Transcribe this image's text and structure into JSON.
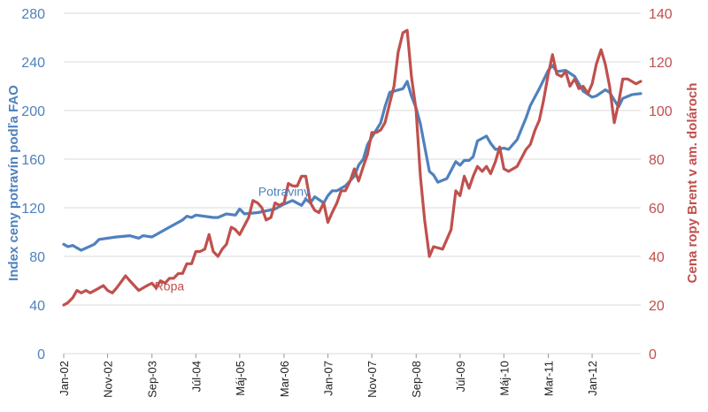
{
  "chart_data": {
    "type": "line",
    "y_left": {
      "label": "Index ceny potravín podľa FAO",
      "ylim": [
        0,
        280
      ],
      "ticks": [
        0,
        40,
        80,
        120,
        160,
        200,
        240,
        280
      ]
    },
    "y_right": {
      "label": "Cena ropy Brent v am. dolároch",
      "ylim": [
        0,
        140
      ],
      "ticks": [
        0,
        20,
        40,
        60,
        80,
        100,
        120,
        140
      ]
    },
    "x_range": [
      2002.0,
      2012.92
    ],
    "x_ticks": [
      {
        "t": 2002.0,
        "label": "Jan-02"
      },
      {
        "t": 2002.83,
        "label": "Nov-02"
      },
      {
        "t": 2003.67,
        "label": "Sep-03"
      },
      {
        "t": 2004.5,
        "label": "Júl-04"
      },
      {
        "t": 2005.33,
        "label": "Máj-05"
      },
      {
        "t": 2006.17,
        "label": "Mar-06"
      },
      {
        "t": 2007.0,
        "label": "Jan-07"
      },
      {
        "t": 2007.83,
        "label": "Nov-07"
      },
      {
        "t": 2008.67,
        "label": "Sep-08"
      },
      {
        "t": 2009.5,
        "label": "Júl-09"
      },
      {
        "t": 2010.33,
        "label": "Máj-10"
      },
      {
        "t": 2011.17,
        "label": "Mar-11"
      },
      {
        "t": 2012.0,
        "label": "Jan-12"
      }
    ],
    "grid": true,
    "series": [
      {
        "name": "Potraviny",
        "axis": "left",
        "color": "#4f81bd",
        "points": [
          [
            2002.0,
            90
          ],
          [
            2002.08,
            88
          ],
          [
            2002.17,
            89
          ],
          [
            2002.33,
            85
          ],
          [
            2002.58,
            90
          ],
          [
            2002.67,
            94
          ],
          [
            2003.0,
            96
          ],
          [
            2003.25,
            97
          ],
          [
            2003.42,
            95
          ],
          [
            2003.5,
            97
          ],
          [
            2003.67,
            96
          ],
          [
            2004.0,
            104
          ],
          [
            2004.25,
            110
          ],
          [
            2004.33,
            113
          ],
          [
            2004.42,
            112
          ],
          [
            2004.5,
            114
          ],
          [
            2004.83,
            112
          ],
          [
            2004.92,
            112
          ],
          [
            2005.08,
            115
          ],
          [
            2005.25,
            114
          ],
          [
            2005.33,
            119
          ],
          [
            2005.42,
            115
          ],
          [
            2005.67,
            116
          ],
          [
            2006.0,
            119
          ],
          [
            2006.17,
            123
          ],
          [
            2006.33,
            126
          ],
          [
            2006.5,
            122
          ],
          [
            2006.58,
            127
          ],
          [
            2006.67,
            124
          ],
          [
            2006.75,
            129
          ],
          [
            2006.92,
            124
          ],
          [
            2007.0,
            130
          ],
          [
            2007.08,
            134
          ],
          [
            2007.17,
            134
          ],
          [
            2007.33,
            138
          ],
          [
            2007.5,
            146
          ],
          [
            2007.58,
            155
          ],
          [
            2007.67,
            160
          ],
          [
            2007.75,
            172
          ],
          [
            2007.83,
            178
          ],
          [
            2008.0,
            190
          ],
          [
            2008.08,
            203
          ],
          [
            2008.17,
            215
          ],
          [
            2008.42,
            218
          ],
          [
            2008.5,
            224
          ],
          [
            2008.58,
            212
          ],
          [
            2008.67,
            202
          ],
          [
            2008.75,
            189
          ],
          [
            2008.92,
            150
          ],
          [
            2009.0,
            147
          ],
          [
            2009.08,
            141
          ],
          [
            2009.25,
            144
          ],
          [
            2009.42,
            158
          ],
          [
            2009.5,
            155
          ],
          [
            2009.58,
            159
          ],
          [
            2009.67,
            159
          ],
          [
            2009.75,
            162
          ],
          [
            2009.83,
            175
          ],
          [
            2010.0,
            179
          ],
          [
            2010.08,
            173
          ],
          [
            2010.17,
            168
          ],
          [
            2010.33,
            169
          ],
          [
            2010.42,
            168
          ],
          [
            2010.58,
            176
          ],
          [
            2010.75,
            194
          ],
          [
            2010.83,
            204
          ],
          [
            2011.0,
            218
          ],
          [
            2011.17,
            233
          ],
          [
            2011.25,
            237
          ],
          [
            2011.33,
            232
          ],
          [
            2011.5,
            233
          ],
          [
            2011.67,
            228
          ],
          [
            2011.83,
            216
          ],
          [
            2012.0,
            211
          ],
          [
            2012.08,
            212
          ],
          [
            2012.25,
            217
          ],
          [
            2012.33,
            215
          ],
          [
            2012.5,
            203
          ],
          [
            2012.58,
            210
          ],
          [
            2012.75,
            213
          ],
          [
            2012.92,
            214
          ]
        ]
      },
      {
        "name": "Ropa",
        "axis": "right",
        "color": "#c0504d",
        "points": [
          [
            2002.0,
            20
          ],
          [
            2002.08,
            21
          ],
          [
            2002.17,
            23
          ],
          [
            2002.25,
            26
          ],
          [
            2002.33,
            25
          ],
          [
            2002.42,
            26
          ],
          [
            2002.5,
            25
          ],
          [
            2002.67,
            27
          ],
          [
            2002.75,
            28
          ],
          [
            2002.83,
            26
          ],
          [
            2002.92,
            25
          ],
          [
            2003.0,
            27
          ],
          [
            2003.17,
            32
          ],
          [
            2003.25,
            30
          ],
          [
            2003.42,
            26
          ],
          [
            2003.58,
            28
          ],
          [
            2003.67,
            29
          ],
          [
            2003.75,
            27
          ],
          [
            2003.83,
            30
          ],
          [
            2003.92,
            29
          ],
          [
            2004.0,
            31
          ],
          [
            2004.08,
            31
          ],
          [
            2004.17,
            33
          ],
          [
            2004.25,
            33
          ],
          [
            2004.33,
            37
          ],
          [
            2004.42,
            37
          ],
          [
            2004.5,
            42
          ],
          [
            2004.58,
            42
          ],
          [
            2004.67,
            43
          ],
          [
            2004.75,
            49
          ],
          [
            2004.83,
            42
          ],
          [
            2004.92,
            40
          ],
          [
            2005.0,
            43
          ],
          [
            2005.08,
            45
          ],
          [
            2005.17,
            52
          ],
          [
            2005.25,
            51
          ],
          [
            2005.33,
            49
          ],
          [
            2005.5,
            56
          ],
          [
            2005.58,
            63
          ],
          [
            2005.67,
            62
          ],
          [
            2005.75,
            60
          ],
          [
            2005.83,
            55
          ],
          [
            2005.92,
            56
          ],
          [
            2006.0,
            62
          ],
          [
            2006.08,
            61
          ],
          [
            2006.17,
            62
          ],
          [
            2006.25,
            70
          ],
          [
            2006.33,
            69
          ],
          [
            2006.42,
            69
          ],
          [
            2006.5,
            73
          ],
          [
            2006.58,
            73
          ],
          [
            2006.67,
            62
          ],
          [
            2006.75,
            59
          ],
          [
            2006.83,
            58
          ],
          [
            2006.92,
            62
          ],
          [
            2007.0,
            54
          ],
          [
            2007.08,
            58
          ],
          [
            2007.17,
            62
          ],
          [
            2007.25,
            67
          ],
          [
            2007.33,
            67
          ],
          [
            2007.42,
            71
          ],
          [
            2007.5,
            76
          ],
          [
            2007.58,
            71
          ],
          [
            2007.67,
            77
          ],
          [
            2007.75,
            82
          ],
          [
            2007.83,
            91
          ],
          [
            2007.92,
            91
          ],
          [
            2008.0,
            92
          ],
          [
            2008.08,
            95
          ],
          [
            2008.17,
            103
          ],
          [
            2008.25,
            110
          ],
          [
            2008.33,
            124
          ],
          [
            2008.42,
            132
          ],
          [
            2008.5,
            133
          ],
          [
            2008.58,
            114
          ],
          [
            2008.67,
            100
          ],
          [
            2008.75,
            73
          ],
          [
            2008.83,
            55
          ],
          [
            2008.92,
            40
          ],
          [
            2009.0,
            44
          ],
          [
            2009.17,
            43
          ],
          [
            2009.25,
            47
          ],
          [
            2009.33,
            51
          ],
          [
            2009.42,
            67
          ],
          [
            2009.5,
            65
          ],
          [
            2009.58,
            73
          ],
          [
            2009.67,
            68
          ],
          [
            2009.75,
            73
          ],
          [
            2009.83,
            77
          ],
          [
            2009.92,
            75
          ],
          [
            2010.0,
            77
          ],
          [
            2010.08,
            74
          ],
          [
            2010.17,
            79
          ],
          [
            2010.25,
            85
          ],
          [
            2010.33,
            76
          ],
          [
            2010.42,
            75
          ],
          [
            2010.58,
            77
          ],
          [
            2010.75,
            84
          ],
          [
            2010.83,
            86
          ],
          [
            2010.92,
            92
          ],
          [
            2011.0,
            96
          ],
          [
            2011.08,
            104
          ],
          [
            2011.17,
            115
          ],
          [
            2011.25,
            123
          ],
          [
            2011.33,
            115
          ],
          [
            2011.42,
            114
          ],
          [
            2011.5,
            116
          ],
          [
            2011.58,
            110
          ],
          [
            2011.67,
            113
          ],
          [
            2011.75,
            109
          ],
          [
            2011.83,
            110
          ],
          [
            2011.92,
            107
          ],
          [
            2012.0,
            111
          ],
          [
            2012.08,
            119
          ],
          [
            2012.17,
            125
          ],
          [
            2012.25,
            119
          ],
          [
            2012.33,
            110
          ],
          [
            2012.42,
            95
          ],
          [
            2012.5,
            103
          ],
          [
            2012.58,
            113
          ],
          [
            2012.67,
            113
          ],
          [
            2012.83,
            111
          ],
          [
            2012.92,
            112
          ]
        ]
      }
    ],
    "annotations": [
      {
        "text": "Potraviny",
        "series": "Potraviny",
        "color": "#4f81bd",
        "t": 2006.17,
        "value": 130
      },
      {
        "text": "Ropa",
        "series": "Ropa",
        "color": "#c0504d",
        "t": 2004.0,
        "value": 26
      }
    ]
  }
}
